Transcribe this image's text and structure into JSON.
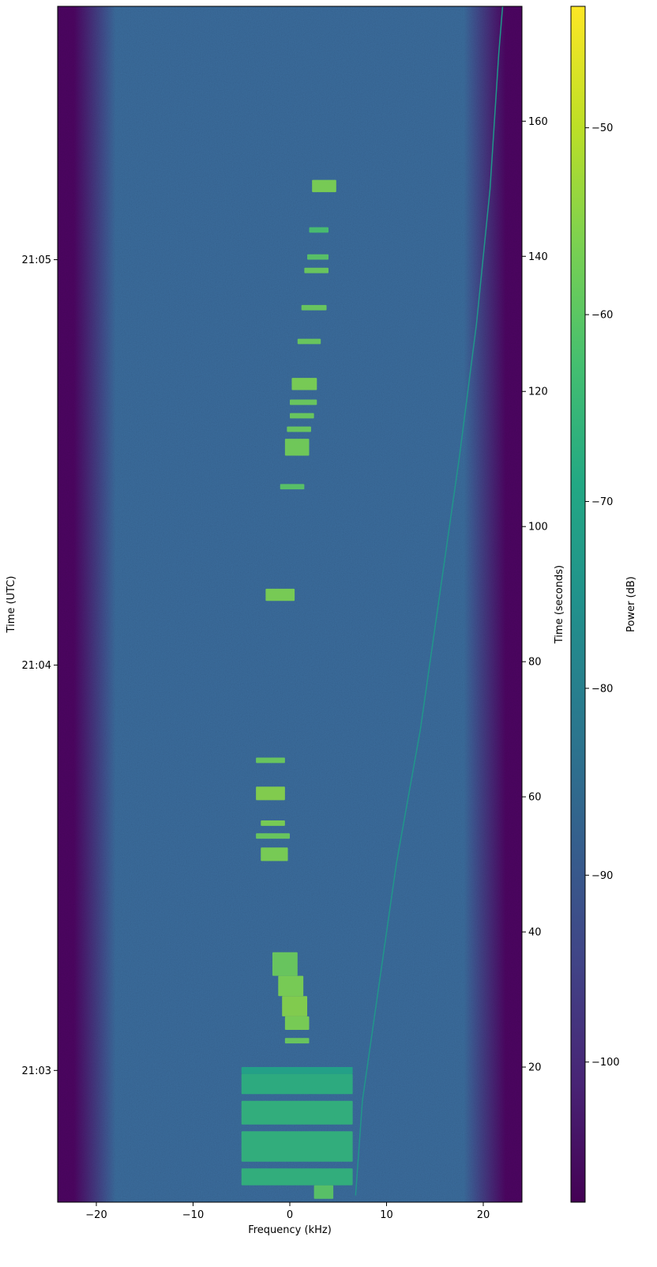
{
  "chart_data": {
    "type": "heatmap",
    "title": "",
    "xlabel": "Frequency (kHz)",
    "ylabel_left": "Time (UTC)",
    "ylabel_right": "Time (seconds)",
    "colorbar_label": "Power (dB)",
    "colormap": "viridis",
    "xlim": [
      -24,
      24
    ],
    "ylim_seconds": [
      0,
      177
    ],
    "x_ticks": [
      -20,
      -10,
      0,
      10,
      20
    ],
    "x_tick_labels": [
      "−20",
      "−10",
      "0",
      "10",
      "20"
    ],
    "utc_ticks": [
      {
        "label": "21:03",
        "seconds": 19.5
      },
      {
        "label": "21:04",
        "seconds": 79.5
      },
      {
        "label": "21:05",
        "seconds": 139.5
      }
    ],
    "seconds_ticks": [
      20,
      40,
      60,
      80,
      100,
      120,
      140,
      160
    ],
    "colorbar_range": [
      -107.5,
      -43.5
    ],
    "colorbar_ticks": [
      -100,
      -90,
      -80,
      -70,
      -60,
      -50
    ],
    "colorbar_tick_labels": [
      "−100",
      "−90",
      "−80",
      "−70",
      "−60",
      "−50"
    ],
    "noise_floor_db": -88,
    "band_edge_db": -107,
    "passband_khz": [
      -18,
      18
    ],
    "chirp_trace": {
      "points": [
        [
          6.8,
          1
        ],
        [
          7.5,
          15
        ],
        [
          9,
          30
        ],
        [
          11,
          50
        ],
        [
          13.5,
          70
        ],
        [
          15.5,
          90
        ],
        [
          17.5,
          110
        ],
        [
          19.3,
          130
        ],
        [
          20.7,
          150
        ],
        [
          21.6,
          170
        ],
        [
          22,
          177
        ]
      ],
      "power_db": -74
    },
    "bursts": [
      {
        "t0": 0.5,
        "t1": 2.5,
        "f0": 2.5,
        "f1": 4.5,
        "power_db": -60
      },
      {
        "t0": 2.5,
        "t1": 5.0,
        "f0": -5.0,
        "f1": 6.5,
        "power_db": -66
      },
      {
        "t0": 6.0,
        "t1": 10.5,
        "f0": -5.0,
        "f1": 6.5,
        "power_db": -66
      },
      {
        "t0": 11.5,
        "t1": 15.0,
        "f0": -5.0,
        "f1": 6.5,
        "power_db": -66
      },
      {
        "t0": 16.0,
        "t1": 19.0,
        "f0": -5.0,
        "f1": 6.5,
        "power_db": -67
      },
      {
        "t0": 19.0,
        "t1": 20.0,
        "f0": -5.0,
        "f1": 6.5,
        "power_db": -70
      },
      {
        "t0": 23.5,
        "t1": 24.3,
        "f0": -0.5,
        "f1": 2.0,
        "power_db": -58
      },
      {
        "t0": 25.5,
        "t1": 27.5,
        "f0": -0.5,
        "f1": 2.0,
        "power_db": -56
      },
      {
        "t0": 27.5,
        "t1": 30.5,
        "f0": -0.8,
        "f1": 1.8,
        "power_db": -55
      },
      {
        "t0": 30.5,
        "t1": 33.5,
        "f0": -1.2,
        "f1": 1.4,
        "power_db": -56
      },
      {
        "t0": 33.5,
        "t1": 37.0,
        "f0": -1.8,
        "f1": 0.8,
        "power_db": -58
      },
      {
        "t0": 50.5,
        "t1": 52.5,
        "f0": -3.0,
        "f1": -0.2,
        "power_db": -56
      },
      {
        "t0": 53.8,
        "t1": 54.6,
        "f0": -3.5,
        "f1": 0.0,
        "power_db": -58
      },
      {
        "t0": 55.7,
        "t1": 56.5,
        "f0": -3.0,
        "f1": -0.5,
        "power_db": -56
      },
      {
        "t0": 59.5,
        "t1": 61.5,
        "f0": -3.5,
        "f1": -0.5,
        "power_db": -55
      },
      {
        "t0": 65.0,
        "t1": 65.8,
        "f0": -3.5,
        "f1": -0.5,
        "power_db": -58
      },
      {
        "t0": 89.0,
        "t1": 90.8,
        "f0": -2.5,
        "f1": 0.5,
        "power_db": -56
      },
      {
        "t0": 105.5,
        "t1": 106.3,
        "f0": -1.0,
        "f1": 1.5,
        "power_db": -60
      },
      {
        "t0": 110.5,
        "t1": 113.0,
        "f0": -0.5,
        "f1": 2.0,
        "power_db": -57
      },
      {
        "t0": 114.0,
        "t1": 114.8,
        "f0": -0.3,
        "f1": 2.2,
        "power_db": -58
      },
      {
        "t0": 116.0,
        "t1": 116.8,
        "f0": 0.0,
        "f1": 2.5,
        "power_db": -58
      },
      {
        "t0": 118.0,
        "t1": 118.8,
        "f0": 0.0,
        "f1": 2.8,
        "power_db": -58
      },
      {
        "t0": 120.2,
        "t1": 122.0,
        "f0": 0.2,
        "f1": 2.8,
        "power_db": -56
      },
      {
        "t0": 127.0,
        "t1": 127.8,
        "f0": 0.8,
        "f1": 3.2,
        "power_db": -58
      },
      {
        "t0": 132.0,
        "t1": 132.8,
        "f0": 1.2,
        "f1": 3.8,
        "power_db": -58
      },
      {
        "t0": 137.5,
        "t1": 138.3,
        "f0": 1.5,
        "f1": 4.0,
        "power_db": -58
      },
      {
        "t0": 139.5,
        "t1": 140.3,
        "f0": 1.8,
        "f1": 4.0,
        "power_db": -60
      },
      {
        "t0": 143.5,
        "t1": 144.3,
        "f0": 2.0,
        "f1": 4.0,
        "power_db": -62
      },
      {
        "t0": 149.5,
        "t1": 151.3,
        "f0": 2.3,
        "f1": 4.8,
        "power_db": -56
      }
    ]
  }
}
